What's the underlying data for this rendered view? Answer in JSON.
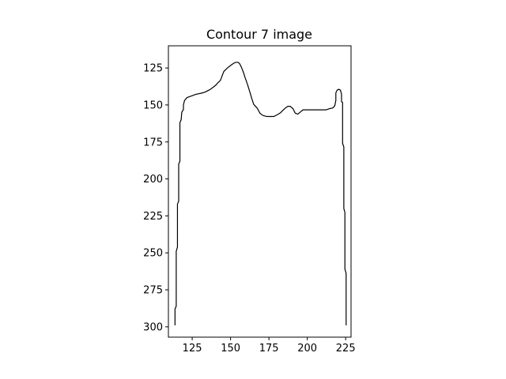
{
  "chart_data": {
    "type": "line",
    "title": "Contour 7 image",
    "xlabel": "",
    "ylabel": "",
    "xlim": [
      109.5,
      228.5
    ],
    "ylim": [
      307,
      110
    ],
    "y_inverted": true,
    "grid": false,
    "x_ticks": [
      125,
      150,
      175,
      200,
      225
    ],
    "y_ticks": [
      125,
      150,
      175,
      200,
      225,
      250,
      275,
      300
    ],
    "line_color": "#000000",
    "series": [
      {
        "points": [
          [
            113.8,
            299
          ],
          [
            113.8,
            288
          ],
          [
            114.6,
            286
          ],
          [
            114.6,
            249
          ],
          [
            115.4,
            246
          ],
          [
            115.4,
            217
          ],
          [
            116.2,
            215
          ],
          [
            116.2,
            190
          ],
          [
            117.0,
            188
          ],
          [
            117.0,
            162
          ],
          [
            117.8,
            160
          ],
          [
            118.2,
            155
          ],
          [
            119.3,
            153
          ],
          [
            119.3,
            150
          ],
          [
            120.0,
            147
          ],
          [
            121.6,
            145
          ],
          [
            124.3,
            144
          ],
          [
            127.4,
            142.8
          ],
          [
            130.7,
            142.1
          ],
          [
            133.2,
            141.4
          ],
          [
            136.6,
            139.6
          ],
          [
            138.6,
            138.1
          ],
          [
            140.7,
            136.3
          ],
          [
            141.8,
            134.9
          ],
          [
            143.4,
            133.4
          ],
          [
            144.5,
            130.3
          ],
          [
            145.6,
            127.4
          ],
          [
            147.4,
            125.5
          ],
          [
            149.1,
            124.0
          ],
          [
            151.1,
            122.5
          ],
          [
            152.9,
            121.3
          ],
          [
            154.6,
            121.1
          ],
          [
            155.8,
            121.9
          ],
          [
            157.0,
            124.3
          ],
          [
            158.4,
            128.0
          ],
          [
            159.6,
            131.9
          ],
          [
            161.0,
            136.0
          ],
          [
            162.5,
            141.0
          ],
          [
            163.8,
            145.6
          ],
          [
            165.1,
            149.6
          ],
          [
            167.4,
            152.2
          ],
          [
            169.1,
            155.5
          ],
          [
            171.0,
            157.1
          ],
          [
            173.6,
            157.8
          ],
          [
            175.9,
            157.8
          ],
          [
            178.3,
            157.8
          ],
          [
            180.6,
            156.5
          ],
          [
            182.5,
            155.3
          ],
          [
            184.3,
            153.5
          ],
          [
            185.8,
            152.0
          ],
          [
            187.4,
            150.9
          ],
          [
            188.8,
            150.9
          ],
          [
            190.7,
            152.5
          ],
          [
            192.1,
            155.5
          ],
          [
            193.8,
            156.2
          ],
          [
            195.2,
            155.0
          ],
          [
            197.2,
            153.3
          ],
          [
            199.4,
            153.3
          ],
          [
            202.1,
            153.3
          ],
          [
            205.0,
            153.3
          ],
          [
            207.8,
            153.3
          ],
          [
            210.2,
            153.3
          ],
          [
            212.3,
            153.3
          ],
          [
            214.5,
            152.5
          ],
          [
            216.6,
            152.0
          ],
          [
            217.9,
            150.6
          ],
          [
            218.6,
            147.0
          ],
          [
            218.6,
            141.9
          ],
          [
            219.4,
            140.0
          ],
          [
            220.5,
            139.4
          ],
          [
            221.6,
            140.0
          ],
          [
            222.3,
            142.7
          ],
          [
            222.3,
            147.8
          ],
          [
            223.0,
            148.3
          ],
          [
            223.0,
            176.0
          ],
          [
            223.8,
            178.4
          ],
          [
            223.8,
            220.0
          ],
          [
            224.5,
            222.6
          ],
          [
            224.5,
            261.0
          ],
          [
            225.3,
            263.8
          ],
          [
            225.3,
            299
          ]
        ]
      }
    ]
  }
}
